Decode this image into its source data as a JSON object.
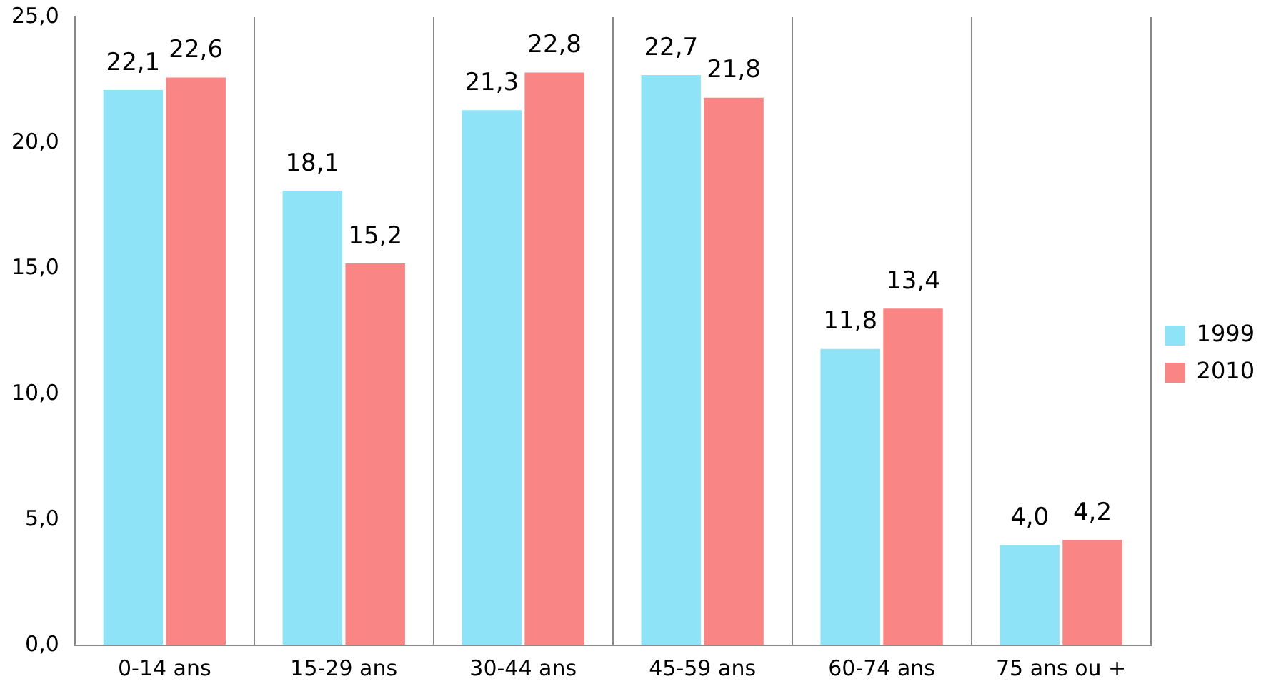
{
  "chart_data": {
    "type": "bar",
    "categories": [
      "0-14 ans",
      "15-29 ans",
      "30-44 ans",
      "45-59 ans",
      "60-74 ans",
      "75 ans ou +"
    ],
    "series": [
      {
        "name": "1999",
        "color": "#8fe3f7",
        "values": [
          22.1,
          18.1,
          21.3,
          22.7,
          11.8,
          4.0
        ],
        "value_labels": [
          "22,1",
          "18,1",
          "21,3",
          "22,7",
          "11,8",
          "4,0"
        ]
      },
      {
        "name": "2010",
        "color": "#f98585",
        "values": [
          22.6,
          15.2,
          22.8,
          21.8,
          13.4,
          4.2
        ],
        "value_labels": [
          "22,6",
          "15,2",
          "22,8",
          "21,8",
          "13,4",
          "4,2"
        ]
      }
    ],
    "ylim": [
      0,
      25
    ],
    "yticks": [
      {
        "value": 0,
        "label": "0,0"
      },
      {
        "value": 5,
        "label": "5,0"
      },
      {
        "value": 10,
        "label": "10,0"
      },
      {
        "value": 15,
        "label": "15,0"
      },
      {
        "value": 20,
        "label": "20,0"
      },
      {
        "value": 25,
        "label": "25,0"
      }
    ],
    "grid": "x",
    "legend": "right"
  }
}
